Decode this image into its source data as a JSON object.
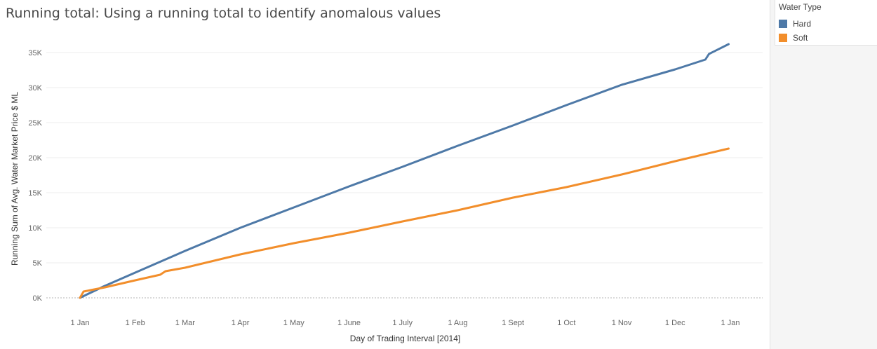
{
  "chart_data": {
    "type": "line",
    "title": "Running total: Using a running total to identify anomalous values",
    "xlabel": "Day of Trading Interval [2014]",
    "ylabel": "Running Sum of Avg. Water Market Price $ ML",
    "ylim": [
      0,
      37000
    ],
    "yticks": [
      0,
      5000,
      10000,
      15000,
      20000,
      25000,
      30000,
      35000
    ],
    "ytick_labels": [
      "0K",
      "5K",
      "10K",
      "15K",
      "20K",
      "25K",
      "30K",
      "35K"
    ],
    "xtick_labels": [
      "1 Jan",
      "1 Feb",
      "1 Mar",
      "1 Apr",
      "1 May",
      "1 June",
      "1 July",
      "1 Aug",
      "1 Sept",
      "1 Oct",
      "1 Nov",
      "1 Dec",
      "1 Jan"
    ],
    "xtick_dates": [
      "2014-01-01",
      "2014-02-01",
      "2014-03-01",
      "2014-04-01",
      "2014-05-01",
      "2014-06-01",
      "2014-07-01",
      "2014-08-01",
      "2014-09-01",
      "2014-10-01",
      "2014-11-01",
      "2014-12-01",
      "2015-01-01"
    ],
    "grid": true,
    "legend_title": "Water Type",
    "legend_position": "top-right",
    "series": [
      {
        "name": "Hard",
        "color": "#4e79a7",
        "points": [
          [
            "2014-01-01",
            0
          ],
          [
            "2014-01-05",
            500
          ],
          [
            "2014-01-10",
            1100
          ],
          [
            "2014-01-14",
            1600
          ],
          [
            "2014-02-01",
            3600
          ],
          [
            "2014-03-01",
            6700
          ],
          [
            "2014-04-01",
            10000
          ],
          [
            "2014-05-01",
            12900
          ],
          [
            "2014-06-01",
            15900
          ],
          [
            "2014-07-01",
            18700
          ],
          [
            "2014-08-01",
            21700
          ],
          [
            "2014-09-01",
            24600
          ],
          [
            "2014-10-01",
            27500
          ],
          [
            "2014-11-01",
            30400
          ],
          [
            "2014-12-01",
            32600
          ],
          [
            "2014-12-18",
            34000
          ],
          [
            "2014-12-20",
            34800
          ],
          [
            "2014-12-31",
            36200
          ]
        ]
      },
      {
        "name": "Soft",
        "color": "#f28e2b",
        "points": [
          [
            "2014-01-01",
            0
          ],
          [
            "2014-01-03",
            900
          ],
          [
            "2014-01-15",
            1500
          ],
          [
            "2014-02-01",
            2500
          ],
          [
            "2014-02-15",
            3300
          ],
          [
            "2014-02-18",
            3800
          ],
          [
            "2014-03-01",
            4300
          ],
          [
            "2014-04-01",
            6200
          ],
          [
            "2014-05-01",
            7800
          ],
          [
            "2014-06-01",
            9300
          ],
          [
            "2014-07-01",
            10900
          ],
          [
            "2014-08-01",
            12500
          ],
          [
            "2014-09-01",
            14300
          ],
          [
            "2014-10-01",
            15800
          ],
          [
            "2014-11-01",
            17600
          ],
          [
            "2014-12-01",
            19500
          ],
          [
            "2014-12-31",
            21300
          ]
        ]
      }
    ]
  }
}
